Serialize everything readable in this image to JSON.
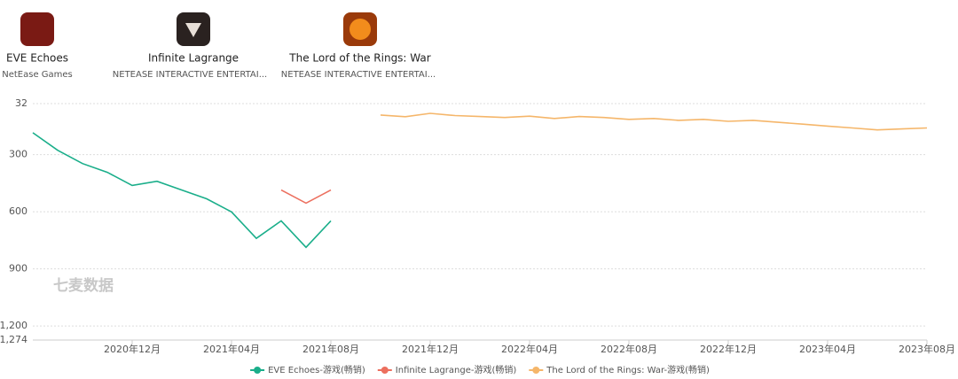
{
  "apps": [
    {
      "name": "EVE Echoes",
      "publisher": "NetEase Games"
    },
    {
      "name": "Infinite Lagrange",
      "publisher": "NETEASE INTERACTIVE ENTERTAI..."
    },
    {
      "name": "The Lord of the Rings: War",
      "publisher": "NETEASE INTERACTIVE ENTERTAI..."
    }
  ],
  "watermark": "七麦数据",
  "chart_data": {
    "type": "line",
    "x": [
      "2020-08",
      "2020-09",
      "2020-10",
      "2020-11",
      "2020-12",
      "2021-01",
      "2021-02",
      "2021-03",
      "2021-04",
      "2021-05",
      "2021-06",
      "2021-07",
      "2021-08",
      "2021-09",
      "2021-10",
      "2021-11",
      "2021-12",
      "2022-01",
      "2022-02",
      "2022-03",
      "2022-04",
      "2022-05",
      "2022-06",
      "2022-07",
      "2022-08",
      "2022-09",
      "2022-10",
      "2022-11",
      "2022-12",
      "2023-01",
      "2023-02",
      "2023-03",
      "2023-04",
      "2023-05",
      "2023-06",
      "2023-07",
      "2023-08"
    ],
    "xlim": [
      "2020-08",
      "2023-08"
    ],
    "xticks": [
      {
        "value": "2020-12",
        "label": "2020年12月"
      },
      {
        "value": "2021-04",
        "label": "2021年04月"
      },
      {
        "value": "2021-08",
        "label": "2021年08月"
      },
      {
        "value": "2021-12",
        "label": "2021年12月"
      },
      {
        "value": "2022-04",
        "label": "2022年04月"
      },
      {
        "value": "2022-08",
        "label": "2022年08月"
      },
      {
        "value": "2022-12",
        "label": "2022年12月"
      },
      {
        "value": "2023-04",
        "label": "2023年04月"
      },
      {
        "value": "2023-08",
        "label": "2023年08月"
      }
    ],
    "ylim": [
      32,
      1274
    ],
    "y_inverted": true,
    "yticks": [
      32,
      300,
      600,
      900,
      {
        "value": 1200,
        "label": "1,200"
      },
      {
        "value": 1274,
        "label": "1,274"
      }
    ],
    "grid": true,
    "series": [
      {
        "name": "EVE Echoes-游戏(畅销)",
        "color": "#1aae8a",
        "values": [
          185,
          277,
          347,
          393,
          462,
          440,
          486,
          532,
          601,
          740,
          648,
          787,
          648,
          null,
          null,
          null,
          null,
          null,
          null,
          null,
          null,
          null,
          null,
          null,
          null,
          null,
          null,
          null,
          null,
          null,
          null,
          null,
          null,
          null,
          null,
          null,
          null
        ]
      },
      {
        "name": "Infinite Lagrange-游戏(畅销)",
        "color": "#ec6f5e",
        "values": [
          null,
          null,
          null,
          null,
          null,
          null,
          null,
          null,
          null,
          null,
          486,
          555,
          486,
          null,
          null,
          null,
          null,
          null,
          null,
          null,
          null,
          null,
          null,
          null,
          null,
          null,
          null,
          null,
          null,
          null,
          null,
          null,
          null,
          null,
          null,
          null,
          null
        ]
      },
      {
        "name": "The Lord of the Rings: War-游戏(畅销)",
        "color": "#f5b66a",
        "values": [
          null,
          null,
          null,
          null,
          null,
          null,
          null,
          null,
          null,
          null,
          null,
          null,
          null,
          null,
          92,
          101,
          83,
          95,
          100,
          105,
          98,
          110,
          100,
          105,
          115,
          110,
          120,
          115,
          125,
          120,
          130,
          140,
          150,
          160,
          170,
          165,
          160
        ]
      }
    ]
  }
}
